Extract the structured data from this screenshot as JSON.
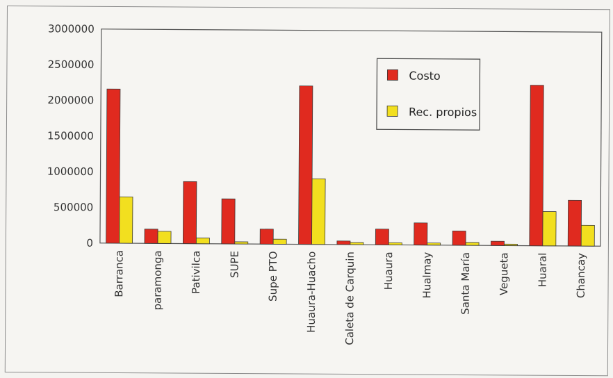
{
  "chart_data": {
    "type": "bar",
    "title": "",
    "xlabel": "",
    "ylabel": "",
    "ylim": [
      0,
      3000000
    ],
    "yticks": [
      "3000000",
      "2500000",
      "2000000",
      "1500000",
      "1000000",
      "500000",
      "0"
    ],
    "categories": [
      "Barranca",
      "paramonga",
      "Pativilca",
      "SUPE",
      "Supe PTO",
      "Huaura-Huacho",
      "Caleta de Carquin",
      "Huaura",
      "Hualmay",
      "Santa María",
      "Vegueta",
      "Huaral",
      "Chancay"
    ],
    "series": [
      {
        "name": "Costo",
        "color": "#e02a1f",
        "values": [
          2160000,
          200000,
          870000,
          630000,
          210000,
          2220000,
          50000,
          220000,
          310000,
          200000,
          60000,
          2250000,
          640000
        ]
      },
      {
        "name": "Rec. propios",
        "color": "#f2df1f",
        "values": [
          650000,
          170000,
          80000,
          30000,
          70000,
          920000,
          30000,
          30000,
          30000,
          40000,
          20000,
          480000,
          290000
        ]
      }
    ],
    "legend_position": "top-right",
    "grid": false
  }
}
